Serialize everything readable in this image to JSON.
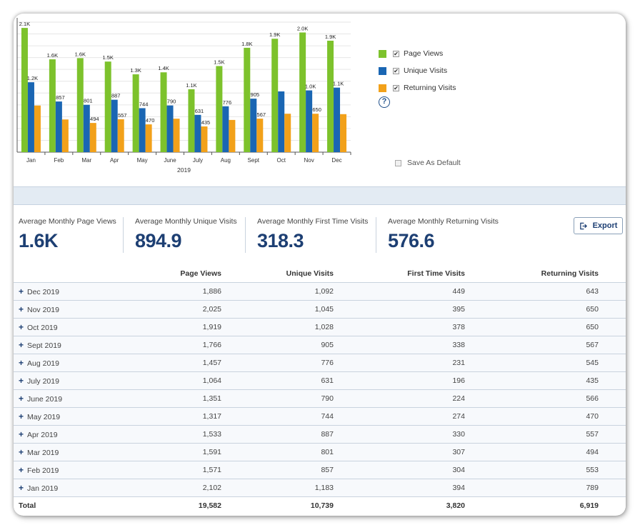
{
  "chart_data": {
    "type": "bar",
    "categories": [
      "Jan",
      "Feb",
      "Mar",
      "Apr",
      "May",
      "June",
      "July",
      "Aug",
      "Sept",
      "Oct",
      "Nov",
      "Dec"
    ],
    "xlabel": "2019",
    "ylim": [
      0,
      2200
    ],
    "series": [
      {
        "name": "Page Views",
        "color": "#7dc22c",
        "values": [
          2102,
          1571,
          1591,
          1533,
          1317,
          1351,
          1064,
          1457,
          1766,
          1919,
          2025,
          1886
        ],
        "labels": [
          "2.1K",
          "1.6K",
          "1.6K",
          "1.5K",
          "1.3K",
          "1.4K",
          "1.1K",
          "1.5K",
          "1.8K",
          "1.9K",
          "2.0K",
          "1.9K"
        ]
      },
      {
        "name": "Unique Visits",
        "color": "#1a66b3",
        "values": [
          1183,
          857,
          801,
          887,
          744,
          790,
          631,
          776,
          905,
          1028,
          1045,
          1092
        ],
        "labels": [
          "1.2K",
          "857",
          "801",
          "887",
          "744",
          "790",
          "631",
          "776",
          "905",
          "",
          "1.0K",
          "1.1K"
        ]
      },
      {
        "name": "Returning Visits",
        "color": "#f2a11a",
        "values": [
          789,
          553,
          494,
          557,
          470,
          566,
          435,
          545,
          567,
          650,
          650,
          643
        ],
        "labels": [
          "",
          "",
          "494",
          "557",
          "470",
          "",
          "435",
          "",
          "567",
          "",
          "650",
          ""
        ]
      }
    ]
  },
  "legend": {
    "items": [
      {
        "label": "Page Views",
        "color": "#7dc22c",
        "checked": "✔"
      },
      {
        "label": "Unique Visits",
        "color": "#1a66b3",
        "checked": "✔"
      },
      {
        "label": "Returning Visits",
        "color": "#f2a11a",
        "checked": "✔"
      }
    ],
    "help": "?",
    "save_default": "Save As Default"
  },
  "summaries": [
    {
      "label": "Average Monthly Page Views",
      "value": "1.6K"
    },
    {
      "label": "Average Monthly Unique Visits",
      "value": "894.9"
    },
    {
      "label": "Average Monthly First Time Visits",
      "value": "318.3"
    },
    {
      "label": "Average Monthly Returning Visits",
      "value": "576.6"
    }
  ],
  "export_label": "Export",
  "table": {
    "headers": [
      "",
      "Page Views",
      "Unique Visits",
      "First Time Visits",
      "Returning Visits"
    ],
    "rows": [
      {
        "month": "Dec 2019",
        "page_views": "1,886",
        "unique": "1,092",
        "first": "449",
        "returning": "643"
      },
      {
        "month": "Nov 2019",
        "page_views": "2,025",
        "unique": "1,045",
        "first": "395",
        "returning": "650"
      },
      {
        "month": "Oct 2019",
        "page_views": "1,919",
        "unique": "1,028",
        "first": "378",
        "returning": "650"
      },
      {
        "month": "Sept 2019",
        "page_views": "1,766",
        "unique": "905",
        "first": "338",
        "returning": "567"
      },
      {
        "month": "Aug 2019",
        "page_views": "1,457",
        "unique": "776",
        "first": "231",
        "returning": "545"
      },
      {
        "month": "July 2019",
        "page_views": "1,064",
        "unique": "631",
        "first": "196",
        "returning": "435"
      },
      {
        "month": "June 2019",
        "page_views": "1,351",
        "unique": "790",
        "first": "224",
        "returning": "566"
      },
      {
        "month": "May 2019",
        "page_views": "1,317",
        "unique": "744",
        "first": "274",
        "returning": "470"
      },
      {
        "month": "Apr 2019",
        "page_views": "1,533",
        "unique": "887",
        "first": "330",
        "returning": "557"
      },
      {
        "month": "Mar 2019",
        "page_views": "1,591",
        "unique": "801",
        "first": "307",
        "returning": "494"
      },
      {
        "month": "Feb 2019",
        "page_views": "1,571",
        "unique": "857",
        "first": "304",
        "returning": "553"
      },
      {
        "month": "Jan 2019",
        "page_views": "2,102",
        "unique": "1,183",
        "first": "394",
        "returning": "789"
      }
    ],
    "total": {
      "label": "Total",
      "page_views": "19,582",
      "unique": "10,739",
      "first": "3,820",
      "returning": "6,919"
    }
  }
}
